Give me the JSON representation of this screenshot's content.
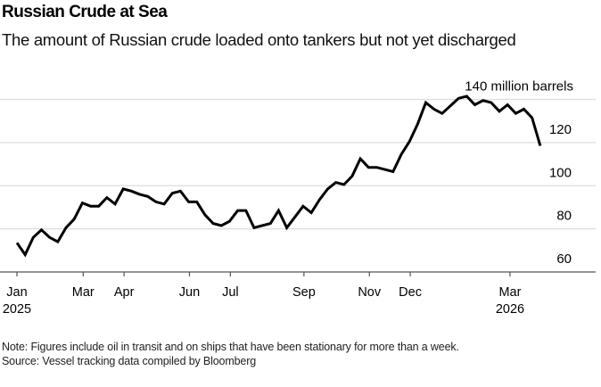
{
  "header": {
    "title": "Russian Crude at Sea",
    "subtitle": "The amount of Russian crude loaded onto tankers but not yet discharged"
  },
  "footer": {
    "note": "Note: Figures include oil in transit and on ships that have been stationary for more than a week.",
    "source": "Source: Vessel tracking data compiled by Bloomberg"
  },
  "colors": {
    "line": "#000000",
    "gridline": "#dddddd",
    "baseline": "#555555"
  },
  "chart_data": {
    "type": "line",
    "title": "Russian Crude at Sea",
    "subtitle": "The amount of Russian crude loaded onto tankers but not yet discharged",
    "xlabel": "",
    "ylabel": "million barrels",
    "ylim": [
      60,
      140
    ],
    "yticks": [
      {
        "value": 140,
        "label": "140 million barrels"
      },
      {
        "value": 120,
        "label": "120"
      },
      {
        "value": 100,
        "label": "100"
      },
      {
        "value": 80,
        "label": "80"
      },
      {
        "value": 60,
        "label": "60"
      }
    ],
    "xticks": [
      {
        "week": 0,
        "label": "Jan",
        "sublabel": "2025"
      },
      {
        "week": 8.1,
        "label": "Mar",
        "sublabel": ""
      },
      {
        "week": 13.1,
        "label": "Apr",
        "sublabel": ""
      },
      {
        "week": 21.1,
        "label": "Jun",
        "sublabel": ""
      },
      {
        "week": 26.1,
        "label": "Jul",
        "sublabel": ""
      },
      {
        "week": 35.1,
        "label": "Sep",
        "sublabel": ""
      },
      {
        "week": 43.1,
        "label": "Nov",
        "sublabel": ""
      },
      {
        "week": 48.1,
        "label": "Dec",
        "sublabel": ""
      },
      {
        "week": 60.3,
        "label": "Mar",
        "sublabel": "2026"
      }
    ],
    "grid": true,
    "legend": "none",
    "series": [
      {
        "name": "Russian crude at sea (million barrels)",
        "frequency": "weekly",
        "values": [
          73.5,
          68,
          76,
          79.5,
          76,
          74,
          80.5,
          84.5,
          92,
          90.5,
          90.5,
          94.5,
          91.5,
          98.5,
          97.5,
          96,
          95,
          92.5,
          91.5,
          96.5,
          97.5,
          92.5,
          92.5,
          86.5,
          82.5,
          81.5,
          83.5,
          88.5,
          88.5,
          80.5,
          81.5,
          82.5,
          88.5,
          80.5,
          85.5,
          90.5,
          87.5,
          93.5,
          98.5,
          101.5,
          100.5,
          104.5,
          112.5,
          108.5,
          108.5,
          107.5,
          106.5,
          114.5,
          120.5,
          128.5,
          138.5,
          135.5,
          133.5,
          137,
          140.5,
          141.5,
          137.5,
          139.5,
          138.5,
          134.5,
          137.5,
          133.5,
          135.5,
          131.5,
          118.5
        ]
      }
    ]
  }
}
